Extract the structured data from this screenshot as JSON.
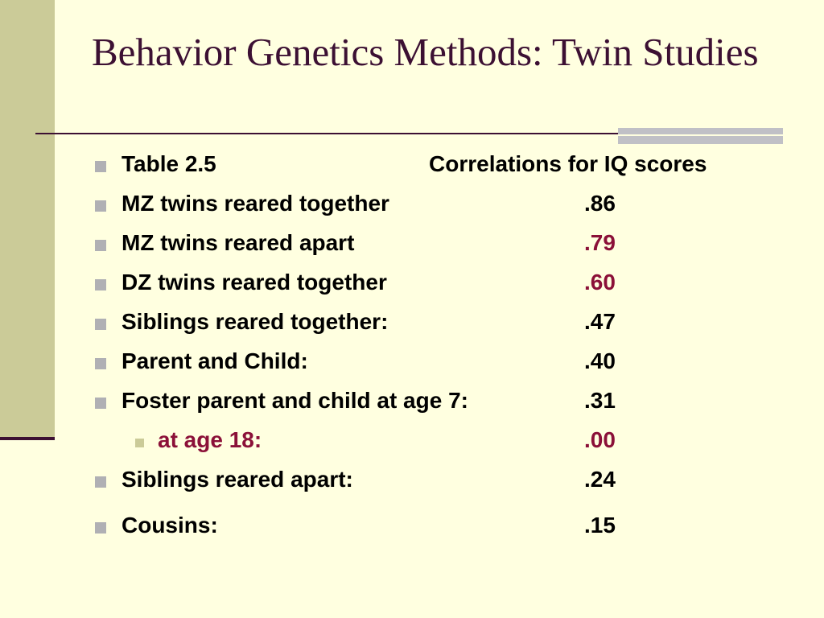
{
  "slide": {
    "title": "Behavior Genetics Methods: Twin Studies",
    "colors": {
      "title": "#3c1033",
      "accent": "#8b1038",
      "sidebar": "#cbcb98",
      "background": "#ffffe0"
    }
  },
  "table": {
    "header_label": "Table 2.5",
    "header_value": "Correlations for IQ scores",
    "rows": [
      {
        "label": "MZ twins reared together",
        "value": ".86"
      },
      {
        "label": "MZ twins reared apart",
        "value": ".79"
      },
      {
        "label": "DZ twins reared together",
        "value": ".60"
      },
      {
        "label": "Siblings reared together:",
        "value": ".47"
      },
      {
        "label": "Parent and Child:",
        "value": ".40"
      },
      {
        "label": "Foster parent and child at age 7:",
        "value": ".31"
      },
      {
        "label": "at age 18:",
        "value": ".00"
      },
      {
        "label": "Siblings reared apart:",
        "value": ".24"
      },
      {
        "label": "Cousins:",
        "value": ".15"
      }
    ]
  }
}
